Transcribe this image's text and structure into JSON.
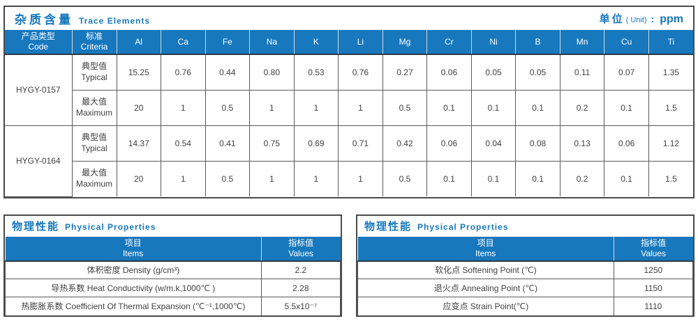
{
  "colors": {
    "accent_blue": "#1778BE",
    "header_text": "#FFFFFF",
    "body_text": "#404040"
  },
  "trace": {
    "title_zh": "杂质含量",
    "title_en": "Trace Elements",
    "unit": {
      "label_zh": "单位",
      "label_en": "( Unit)",
      "colon": ":",
      "value": "ppm"
    },
    "col_code_zh": "产品类型",
    "col_code_en": "Code",
    "col_criteria_zh": "标准",
    "col_criteria_en": "Criteria",
    "element_columns": [
      "Al",
      "Ca",
      "Fe",
      "Na",
      "K",
      "Li",
      "Mg",
      "Cr",
      "Ni",
      "B",
      "Mn",
      "Cu",
      "Ti"
    ],
    "products": [
      {
        "code": "HYGY-0157",
        "rows": [
          {
            "criteria_zh": "典型值",
            "criteria_en": "Typical",
            "values": [
              "15.25",
              "0.76",
              "0.44",
              "0.80",
              "0.53",
              "0.76",
              "0.27",
              "0.06",
              "0.05",
              "0.05",
              "0.11",
              "0.07",
              "1.35"
            ]
          },
          {
            "criteria_zh": "最大值",
            "criteria_en": "Maximum",
            "values": [
              "20",
              "1",
              "0.5",
              "1",
              "1",
              "1",
              "0.5",
              "0.1",
              "0.1",
              "0.1",
              "0.2",
              "0.1",
              "1.5"
            ]
          }
        ]
      },
      {
        "code": "HYGY-0164",
        "rows": [
          {
            "criteria_zh": "典型值",
            "criteria_en": "Typical",
            "values": [
              "14.37",
              "0.54",
              "0.41",
              "0.75",
              "0.69",
              "0.71",
              "0.42",
              "0.06",
              "0.04",
              "0.08",
              "0.13",
              "0.06",
              "1.12"
            ]
          },
          {
            "criteria_zh": "最大值",
            "criteria_en": "Maximum",
            "values": [
              "20",
              "1",
              "0.5",
              "1",
              "1",
              "1",
              "0.5",
              "0.1",
              "0.1",
              "0.1",
              "0.2",
              "0.1",
              "1.5"
            ]
          }
        ]
      }
    ]
  },
  "physical_left": {
    "title_zh": "物理性能",
    "title_en": "Physical Properties",
    "col_item_zh": "项目",
    "col_item_en": "Items",
    "col_value_zh": "指标值",
    "col_value_en": "Values",
    "rows": [
      {
        "item": "体积密度 Density (g/cm³)",
        "value": "2.2"
      },
      {
        "item": "导热系数 Heat Conductivity (w/m.k,1000℃ )",
        "value": "2.28"
      },
      {
        "item": "热膨胀系数 Coefficient Of Thermal Expansion (℃⁻¹,1000℃)",
        "value": "5.5x10⁻⁷"
      }
    ]
  },
  "physical_right": {
    "title_zh": "物理性能",
    "title_en": "Physical Properties",
    "col_item_zh": "项目",
    "col_item_en": "Items",
    "col_value_zh": "指标值",
    "col_value_en": "Values",
    "rows": [
      {
        "item": "软化点 Softening Point (℃)",
        "value": "1250"
      },
      {
        "item": "退火点 Annealing Point (℃)",
        "value": "1150"
      },
      {
        "item": "应变点 Strain Point(℃)",
        "value": "1110"
      }
    ]
  }
}
